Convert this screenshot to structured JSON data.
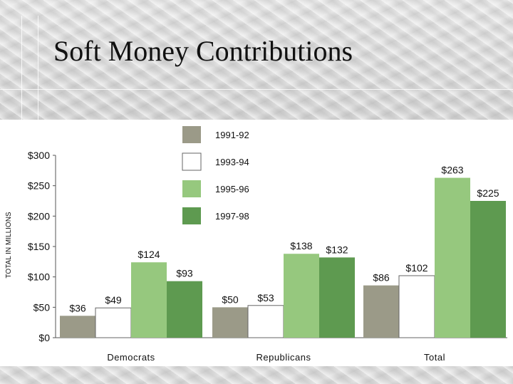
{
  "slide": {
    "title": "Soft Money Contributions"
  },
  "chart_data": {
    "type": "bar",
    "title": "",
    "ylabel": "TOTAL IN MILLIONS",
    "xlabel": "",
    "ylim": [
      0,
      300
    ],
    "yticks": [
      0,
      50,
      100,
      150,
      200,
      250,
      300
    ],
    "ytick_labels": [
      "$0",
      "$50",
      "$100",
      "$150",
      "$200",
      "$250",
      "$300"
    ],
    "categories": [
      "Democrats",
      "Republicans",
      "Total"
    ],
    "series": [
      {
        "name": "1991-92",
        "color": "#9b9a88",
        "values": [
          36,
          50,
          86
        ],
        "labels": [
          "$36",
          "$50",
          "$86"
        ]
      },
      {
        "name": "1993-94",
        "color": "#ffffff",
        "values": [
          49,
          53,
          102
        ],
        "labels": [
          "$49",
          "$53",
          "$102"
        ]
      },
      {
        "name": "1995-96",
        "color": "#96c87e",
        "values": [
          124,
          138,
          263
        ],
        "labels": [
          "$124",
          "$138",
          "$263"
        ]
      },
      {
        "name": "1997-98",
        "color": "#5e9a50",
        "values": [
          93,
          132,
          225
        ],
        "labels": [
          "$93",
          "$132",
          "$225"
        ]
      }
    ],
    "legend_position": "top-center",
    "grid": false
  }
}
